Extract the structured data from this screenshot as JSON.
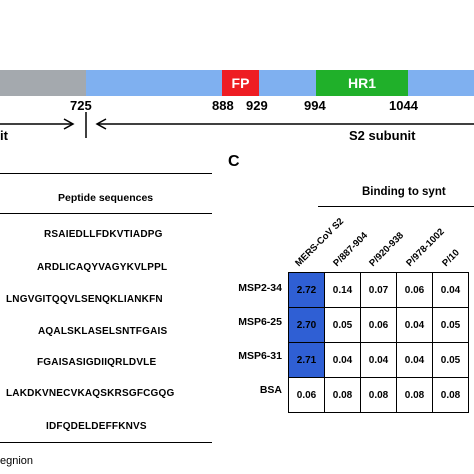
{
  "schematic": {
    "segments": [
      {
        "name": "S1 region",
        "color": "#a4a9ae"
      },
      {
        "name": "S2 region",
        "color": "#7fb0f0"
      },
      {
        "name": "FP",
        "label": "FP",
        "color": "#ee1d23"
      },
      {
        "name": "HR1",
        "label": "HR1",
        "color": "#20b02a"
      }
    ],
    "positions": [
      "725",
      "888",
      "929",
      "994",
      "1044"
    ],
    "s1_label": "it",
    "s2_label": "S2 subunit"
  },
  "panel_b": {
    "header": "Peptide sequences",
    "sequences": [
      "RSAIEDLLFDKVTIADPG",
      "ARDLICAQYVAGYKVLPPL",
      "LNGVGITQQVLSENQKLIANKFN",
      "AQALSKLASELSNTFGAIS",
      "FGAISASIGDIIQRLDVLE",
      "LAKDKVNECVKAQSKRSGFCGQG",
      "IDFQDELDEFFKNVS"
    ],
    "footer": "egnion"
  },
  "panel_c": {
    "letter": "C",
    "binding_header": "Binding to synt",
    "columns": [
      "MERS-CoV S2",
      "P/887-904",
      "P/920-938",
      "P/978-1002",
      "P/10"
    ],
    "rows": [
      {
        "label": "MSP2-34",
        "values": [
          "2.72",
          "0.14",
          "0.07",
          "0.06",
          "0.04"
        ]
      },
      {
        "label": "MSP6-25",
        "values": [
          "2.70",
          "0.05",
          "0.06",
          "0.04",
          "0.05"
        ]
      },
      {
        "label": "MSP6-31",
        "values": [
          "2.71",
          "0.04",
          "0.04",
          "0.04",
          "0.05"
        ]
      },
      {
        "label": "BSA",
        "values": [
          "0.06",
          "0.08",
          "0.08",
          "0.08",
          "0.08"
        ]
      }
    ],
    "highlight_color": "#2f5fd4"
  }
}
